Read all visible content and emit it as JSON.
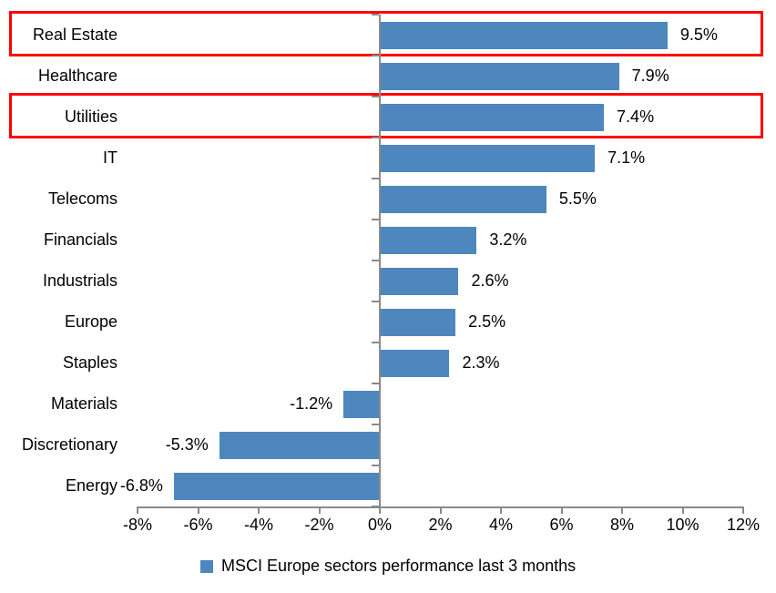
{
  "chart_data": {
    "type": "bar",
    "orientation": "horizontal",
    "title": "",
    "legend_label": "MSCI Europe sectors performance last 3 months",
    "legend_position": "bottom",
    "grid": false,
    "categories": [
      "Real Estate",
      "Healthcare",
      "Utilities",
      "IT",
      "Telecoms",
      "Financials",
      "Industrials",
      "Europe",
      "Staples",
      "Materials",
      "Discretionary",
      "Energy"
    ],
    "values": [
      9.5,
      7.9,
      7.4,
      7.1,
      5.5,
      3.2,
      2.6,
      2.5,
      2.3,
      -1.2,
      -5.3,
      -6.8
    ],
    "value_labels": [
      "9.5%",
      "7.9%",
      "7.4%",
      "7.1%",
      "5.5%",
      "3.2%",
      "2.6%",
      "2.5%",
      "2.3%",
      "-1.2%",
      "-5.3%",
      "-6.8%"
    ],
    "x_axis": {
      "min": -8,
      "max": 12,
      "step": 2,
      "tick_labels": [
        "-8%",
        "-6%",
        "-4%",
        "-2%",
        "0%",
        "2%",
        "4%",
        "6%",
        "8%",
        "10%",
        "12%"
      ]
    },
    "highlighted_categories": [
      "Real Estate",
      "Utilities"
    ],
    "colors": {
      "bar": "#4E87BE",
      "axis": "#8A8A8A",
      "highlight": "#FF0000",
      "text": "#000000"
    }
  }
}
